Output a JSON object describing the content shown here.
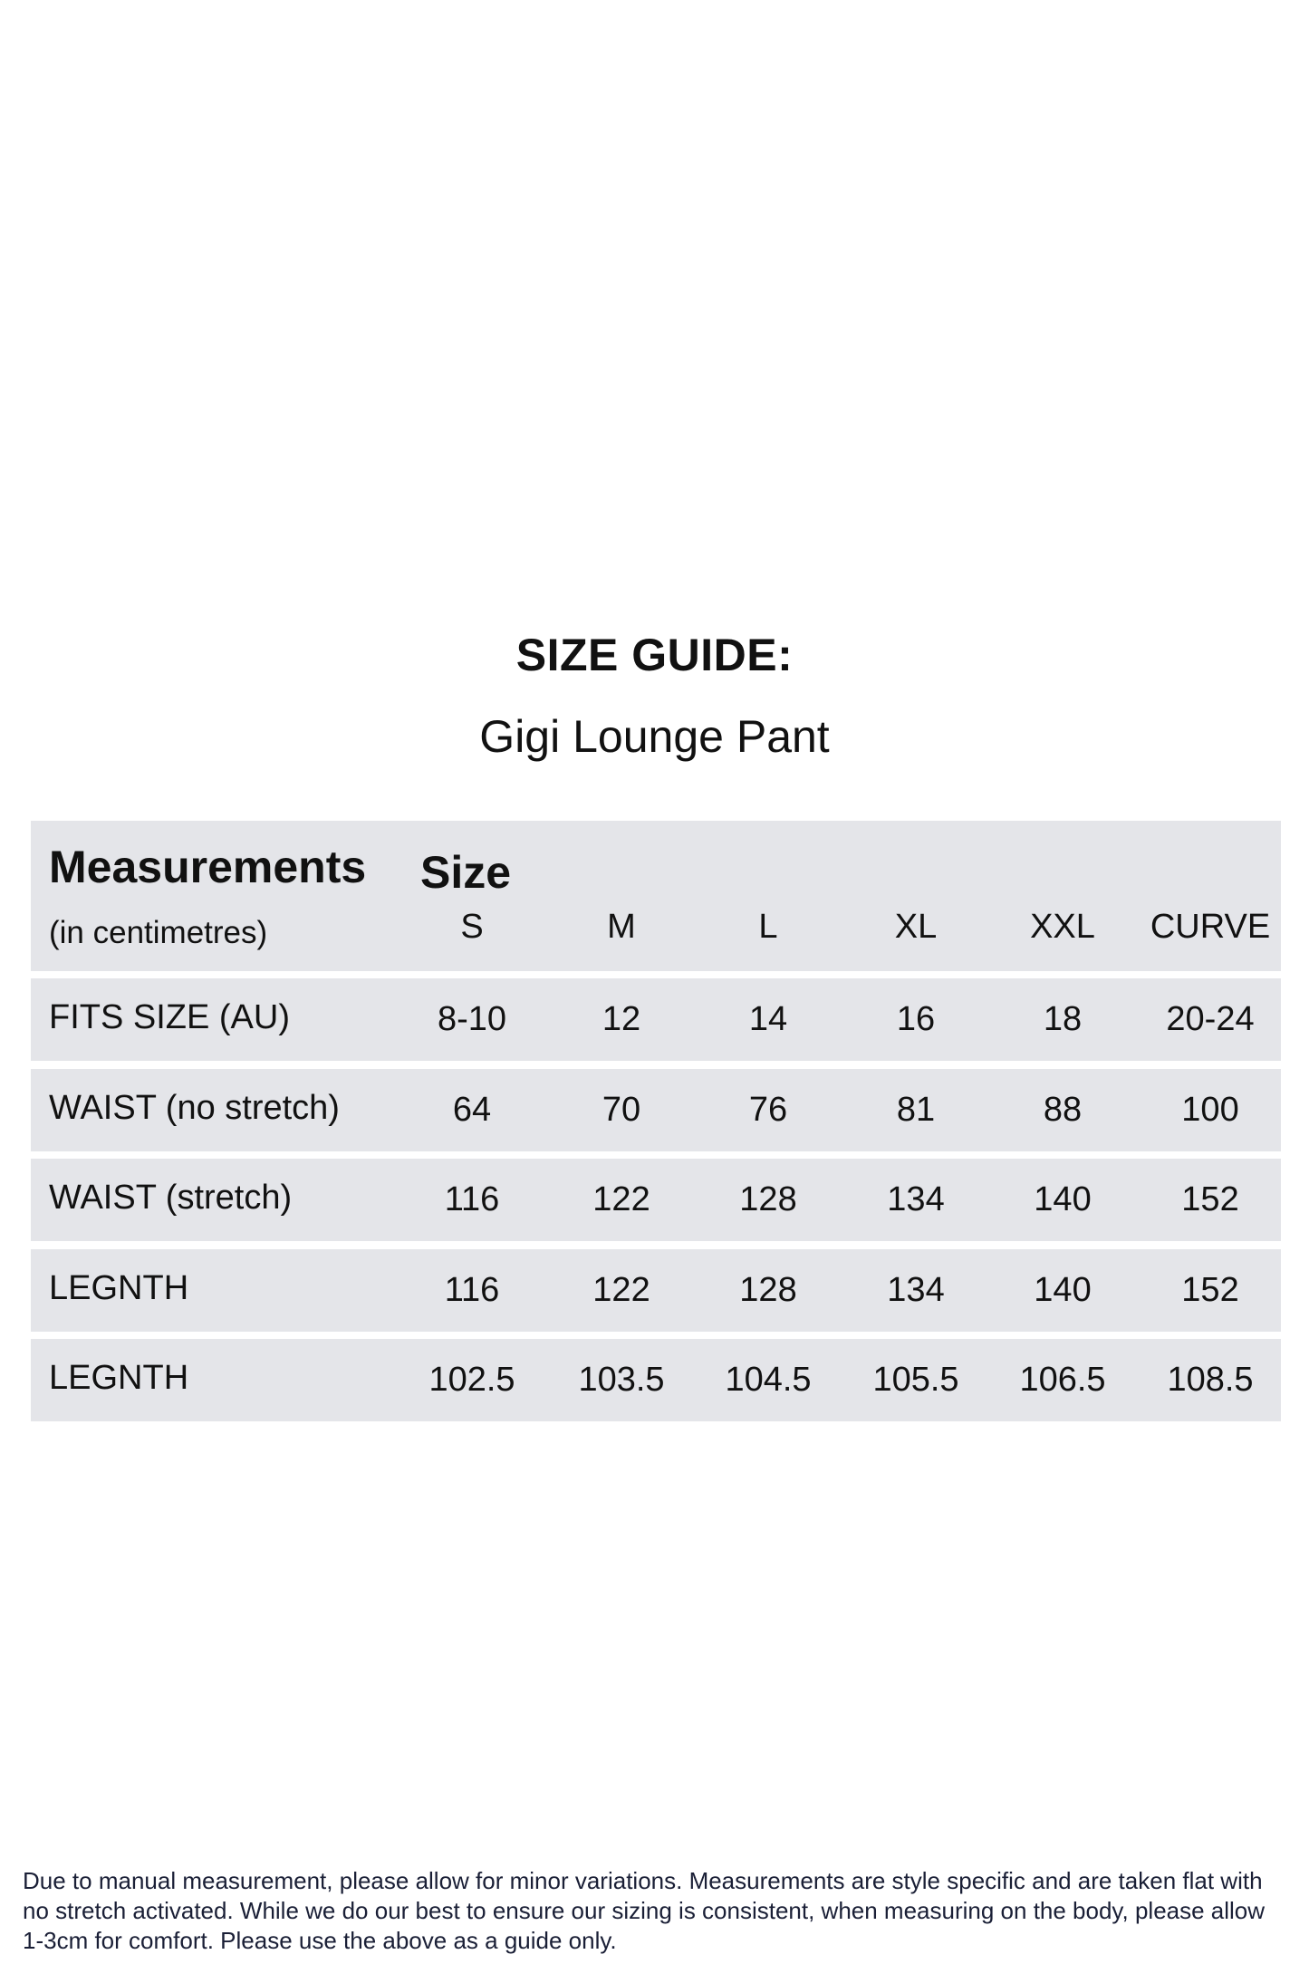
{
  "title": "SIZE GUIDE:",
  "subtitle": "Gigi Lounge Pant",
  "table": {
    "header": {
      "measurements": "Measurements",
      "unit": "(in centimetres)",
      "size": "Size",
      "sizes": [
        "S",
        "M",
        "L",
        "XL",
        "XXL",
        "CURVE"
      ]
    },
    "rows": [
      {
        "label": "FITS SIZE (AU)",
        "values": [
          "8-10",
          "12",
          "14",
          "16",
          "18",
          "20-24"
        ]
      },
      {
        "label": "WAIST (no stretch)",
        "values": [
          "64",
          "70",
          "76",
          "81",
          "88",
          "100"
        ]
      },
      {
        "label": "WAIST (stretch)",
        "values": [
          "116",
          "122",
          "128",
          "134",
          "140",
          "152"
        ]
      },
      {
        "label": "LEGNTH",
        "values": [
          "116",
          "122",
          "128",
          "134",
          "140",
          "152"
        ]
      },
      {
        "label": "LEGNTH",
        "values": [
          "102.5",
          "103.5",
          "104.5",
          "105.5",
          "106.5",
          "108.5"
        ]
      }
    ]
  },
  "footer": {
    "lines": [
      "Due to manual measurement, please allow for minor variations. Measurements are style specific and are taken flat with",
      "no stretch activated. While we do our best to ensure our sizing is consistent, when measuring on the body, please allow",
      "1-3cm for comfort. Please use the above as a guide only."
    ]
  },
  "colors": {
    "row_background": "#e4e5e9",
    "footer_text": "#1a1f36"
  }
}
